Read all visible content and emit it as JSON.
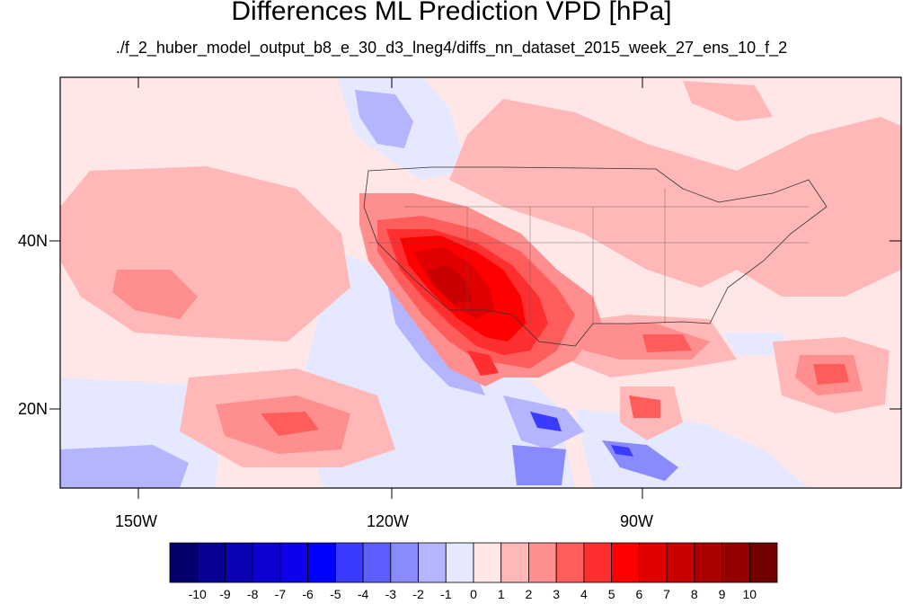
{
  "title": "Differences ML Prediction VPD [hPa]",
  "subtitle": "./f_2_huber_model_output_b8_e_30_d3_lneg4/diffs_nn_dataset_2015_week_27_ens_10_f_2",
  "axes": {
    "x_ticks": [
      "150W",
      "120W",
      "90W"
    ],
    "y_ticks": [
      "40N",
      "20N"
    ]
  },
  "colorbar": {
    "labels": [
      "-10",
      "-9",
      "-8",
      "-7",
      "-6",
      "-5",
      "-4",
      "-3",
      "-2",
      "-1",
      "0",
      "1",
      "2",
      "3",
      "4",
      "5",
      "6",
      "7",
      "8",
      "9",
      "10"
    ],
    "colors": [
      "#03006e",
      "#070094",
      "#0a00b4",
      "#0c00d2",
      "#0d00ea",
      "#0000ff",
      "#3b3bff",
      "#5e5eff",
      "#8a8aff",
      "#b5b5ff",
      "#e5e8ff",
      "#ffe7e7",
      "#ffb7b7",
      "#ff8e8e",
      "#ff5c5c",
      "#ff2f2f",
      "#ff0000",
      "#e00000",
      "#c80000",
      "#aa0000",
      "#940000",
      "#720000"
    ]
  }
}
